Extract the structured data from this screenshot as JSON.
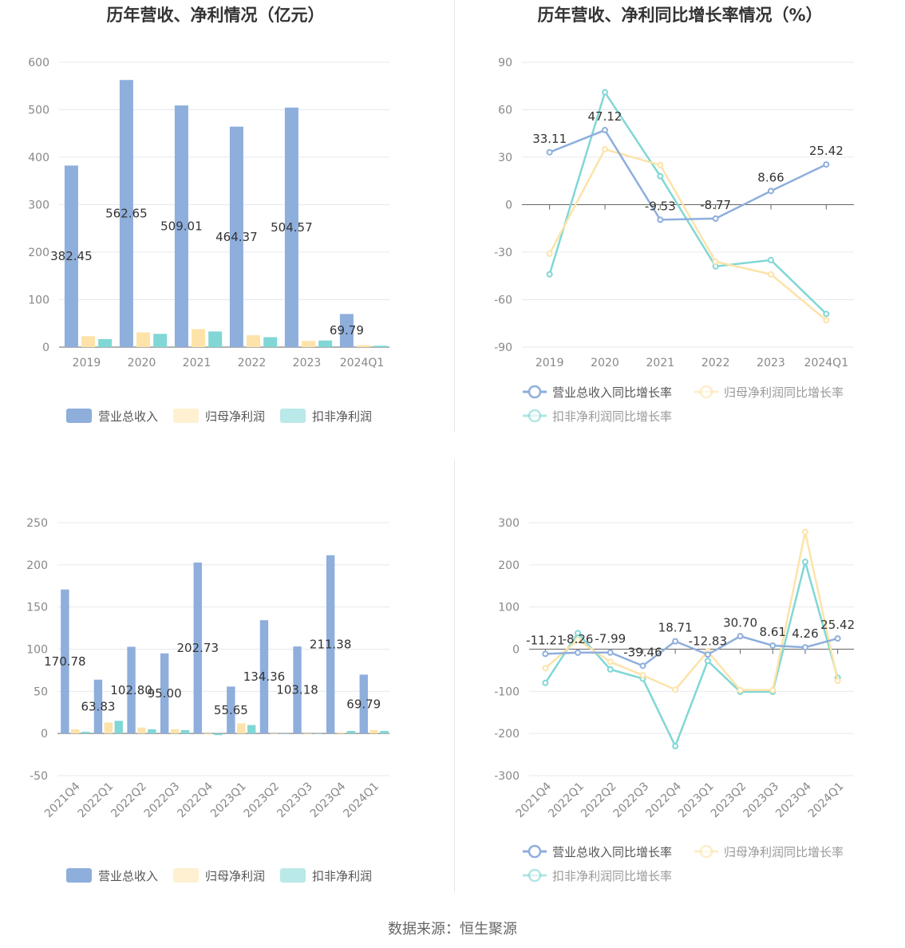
{
  "source": "数据来源：恒生聚源",
  "colors": {
    "revenue": "#8eaedc",
    "net": "#fde3a9",
    "deducted": "#80d7d5"
  },
  "chart_data": [
    {
      "type": "bar",
      "title": "历年营收、净利情况（亿元）",
      "categories": [
        "2019",
        "2020",
        "2021",
        "2022",
        "2023",
        "2024Q1"
      ],
      "ylim": [
        0,
        600
      ],
      "yticks": [
        0,
        100,
        200,
        300,
        400,
        500,
        600
      ],
      "grid": true,
      "legend_position": "bottom",
      "series": [
        {
          "name": "营业总收入",
          "values": [
            382.45,
            562.65,
            509.01,
            464.37,
            504.57,
            69.79
          ],
          "labels": [
            "382.45",
            "562.65",
            "509.01",
            "464.37",
            "504.57",
            "69.79"
          ]
        },
        {
          "name": "归母净利润",
          "values": [
            23,
            31,
            38,
            25,
            13,
            4
          ]
        },
        {
          "name": "扣非净利润",
          "values": [
            17,
            28,
            33,
            21,
            14,
            3
          ]
        }
      ]
    },
    {
      "type": "line",
      "title": "历年营收、净利同比增长率情况（%）",
      "categories": [
        "2019",
        "2020",
        "2021",
        "2022",
        "2023",
        "2024Q1"
      ],
      "ylim": [
        -90,
        90
      ],
      "yticks": [
        -90,
        -60,
        -30,
        0,
        30,
        60,
        90
      ],
      "grid": true,
      "legend_position": "bottom",
      "series": [
        {
          "name": "营业总收入同比增长率",
          "values": [
            33.11,
            47.12,
            -9.53,
            -8.77,
            8.66,
            25.42
          ],
          "labels": [
            "33.11",
            "47.12",
            "-9.53",
            "-8.77",
            "8.66",
            "25.42"
          ]
        },
        {
          "name": "归母净利润同比增长率",
          "values": [
            -31,
            35,
            25,
            -36,
            -44,
            -73
          ]
        },
        {
          "name": "扣非净利润同比增长率",
          "values": [
            -44,
            71,
            18,
            -39,
            -35,
            -69
          ]
        }
      ]
    },
    {
      "type": "bar",
      "title": "营收、净利季度变动情况（亿元）",
      "categories": [
        "2021Q4",
        "2022Q1",
        "2022Q2",
        "2022Q3",
        "2022Q4",
        "2023Q1",
        "2023Q2",
        "2023Q3",
        "2023Q4",
        "2024Q1"
      ],
      "ylim": [
        -50,
        250
      ],
      "yticks": [
        -50,
        0,
        50,
        100,
        150,
        200,
        250
      ],
      "grid": true,
      "legend_position": "bottom",
      "series": [
        {
          "name": "营业总收入",
          "values": [
            170.78,
            63.83,
            102.8,
            95.0,
            202.73,
            55.65,
            134.36,
            103.18,
            211.38,
            69.79
          ],
          "labels": [
            "170.78",
            "63.83",
            "102.80",
            "95.00",
            "202.73",
            "55.65",
            "134.36",
            "103.18",
            "211.38",
            "69.79"
          ]
        },
        {
          "name": "归母净利润",
          "values": [
            5,
            13,
            7,
            5,
            -1,
            12,
            0,
            0,
            1,
            4
          ]
        },
        {
          "name": "扣非净利润",
          "values": [
            2,
            15,
            5,
            4,
            -2,
            10,
            0,
            0,
            3,
            3
          ]
        }
      ]
    },
    {
      "type": "line",
      "title": "营收、净利同比增长率季度变动情况（%）",
      "categories": [
        "2021Q4",
        "2022Q1",
        "2022Q2",
        "2022Q3",
        "2022Q4",
        "2023Q1",
        "2023Q2",
        "2023Q3",
        "2023Q4",
        "2024Q1"
      ],
      "ylim": [
        -300,
        300
      ],
      "yticks": [
        -300,
        -200,
        -100,
        0,
        100,
        200,
        300
      ],
      "grid": true,
      "legend_position": "bottom",
      "series": [
        {
          "name": "营业总收入同比增长率",
          "values": [
            -11.21,
            -8.26,
            -7.99,
            -39.46,
            18.71,
            -12.83,
            30.7,
            8.61,
            4.26,
            25.42
          ],
          "labels": [
            "-11.21",
            "-8.26",
            "-7.99",
            "-39.46",
            "18.71",
            "-12.83",
            "30.70",
            "8.61",
            "4.26",
            "25.42"
          ]
        },
        {
          "name": "归母净利润同比增长率",
          "values": [
            -45,
            22,
            -30,
            -62,
            -96,
            -5,
            -97,
            -97,
            278,
            -75
          ]
        },
        {
          "name": "扣非净利润同比增长率",
          "values": [
            -80,
            38,
            -48,
            -70,
            -230,
            -28,
            -101,
            -101,
            207,
            -68
          ]
        }
      ]
    }
  ]
}
